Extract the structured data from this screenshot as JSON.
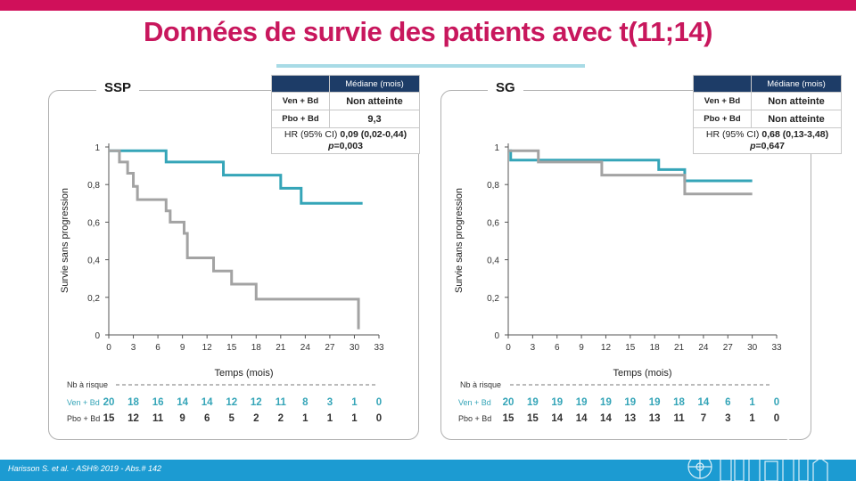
{
  "title": "Données de survie des patients avec t(11;14)",
  "footer": "Harisson S. et al. - ASH® 2019 - Abs.# 142",
  "colors": {
    "ven": "#35a5b8",
    "pbo": "#a3a3a3",
    "title": "#c8175d",
    "table_header": "#1d3c67"
  },
  "left": {
    "label": "SSP",
    "table": {
      "header": "Médiane (mois)",
      "rows": [
        {
          "label": "Ven + Bd",
          "value": "Non atteinte"
        },
        {
          "label": "Pbo + Bd",
          "value": "9,3"
        }
      ],
      "hr_prefix": "HR (95% CI) ",
      "hr_value": "0,09 (0,02-0,44)",
      "p_label": "p",
      "p_value": "=0,003"
    }
  },
  "right": {
    "label": "SG",
    "table": {
      "header": "Médiane (mois)",
      "rows": [
        {
          "label": "Ven + Bd",
          "value": "Non atteinte"
        },
        {
          "label": "Pbo + Bd",
          "value": "Non atteinte"
        }
      ],
      "hr_prefix": "HR (95% CI) ",
      "hr_value": "0,68 (0,13-3,48)",
      "p_label": "p",
      "p_value": "=0,647"
    }
  },
  "chart_data": [
    {
      "type": "line",
      "title": "SSP",
      "xlabel": "Temps (mois)",
      "ylabel": "Survie sans progression",
      "xlim": [
        0,
        33
      ],
      "ylim": [
        0,
        1
      ],
      "xticks": [
        "0",
        "3",
        "6",
        "9",
        "12",
        "15",
        "18",
        "21",
        "24",
        "27",
        "30",
        "33"
      ],
      "yticks": [
        "0",
        "0,2",
        "0,4",
        "0,6",
        "0,8",
        "1"
      ],
      "series": [
        {
          "name": "Ven + Bd",
          "color": "#35a5b8",
          "step_x": [
            0,
            7,
            14,
            21,
            23.5,
            31
          ],
          "step_y": [
            0.98,
            0.92,
            0.85,
            0.78,
            0.7,
            0.7
          ]
        },
        {
          "name": "Pbo + Bd",
          "color": "#a3a3a3",
          "step_x": [
            0,
            1.3,
            2.3,
            3,
            3.5,
            7,
            7.5,
            7.8,
            9.2,
            9.6,
            12.8,
            15,
            18,
            30.5,
            30.5
          ],
          "step_y": [
            0.98,
            0.92,
            0.86,
            0.79,
            0.72,
            0.66,
            0.6,
            0.6,
            0.54,
            0.41,
            0.34,
            0.27,
            0.19,
            0.19,
            0.03
          ]
        }
      ],
      "at_risk": {
        "title": "Nb à risque",
        "rows": [
          {
            "name": "Ven + Bd",
            "values": [
              "20",
              "18",
              "16",
              "14",
              "14",
              "12",
              "12",
              "11",
              "8",
              "3",
              "1",
              "0"
            ]
          },
          {
            "name": "Pbo + Bd",
            "values": [
              "15",
              "12",
              "11",
              "9",
              "6",
              "5",
              "2",
              "2",
              "1",
              "1",
              "1",
              "0"
            ]
          }
        ]
      }
    },
    {
      "type": "line",
      "title": "SG",
      "xlabel": "Temps (mois)",
      "ylabel": "Survie sans progression",
      "xlim": [
        0,
        33
      ],
      "ylim": [
        0,
        1
      ],
      "xticks": [
        "0",
        "3",
        "6",
        "9",
        "12",
        "15",
        "18",
        "21",
        "24",
        "27",
        "30",
        "33"
      ],
      "yticks": [
        "0",
        "0,2",
        "0,4",
        "0,6",
        "0,8",
        "1"
      ],
      "series": [
        {
          "name": "Ven + Bd",
          "color": "#35a5b8",
          "step_x": [
            0,
            0.3,
            18.5,
            21.7,
            30
          ],
          "step_y": [
            0.98,
            0.93,
            0.88,
            0.82,
            0.82
          ]
        },
        {
          "name": "Pbo + Bd",
          "color": "#a3a3a3",
          "step_x": [
            0,
            3.7,
            11.5,
            21.7,
            30
          ],
          "step_y": [
            0.98,
            0.92,
            0.85,
            0.75,
            0.75
          ]
        }
      ],
      "at_risk": {
        "title": "Nb à risque",
        "rows": [
          {
            "name": "Ven + Bd",
            "values": [
              "20",
              "19",
              "19",
              "19",
              "19",
              "19",
              "19",
              "18",
              "14",
              "6",
              "1",
              "0"
            ]
          },
          {
            "name": "Pbo + Bd",
            "values": [
              "15",
              "15",
              "14",
              "14",
              "14",
              "13",
              "13",
              "11",
              "7",
              "3",
              "1",
              "0"
            ]
          }
        ]
      }
    }
  ]
}
